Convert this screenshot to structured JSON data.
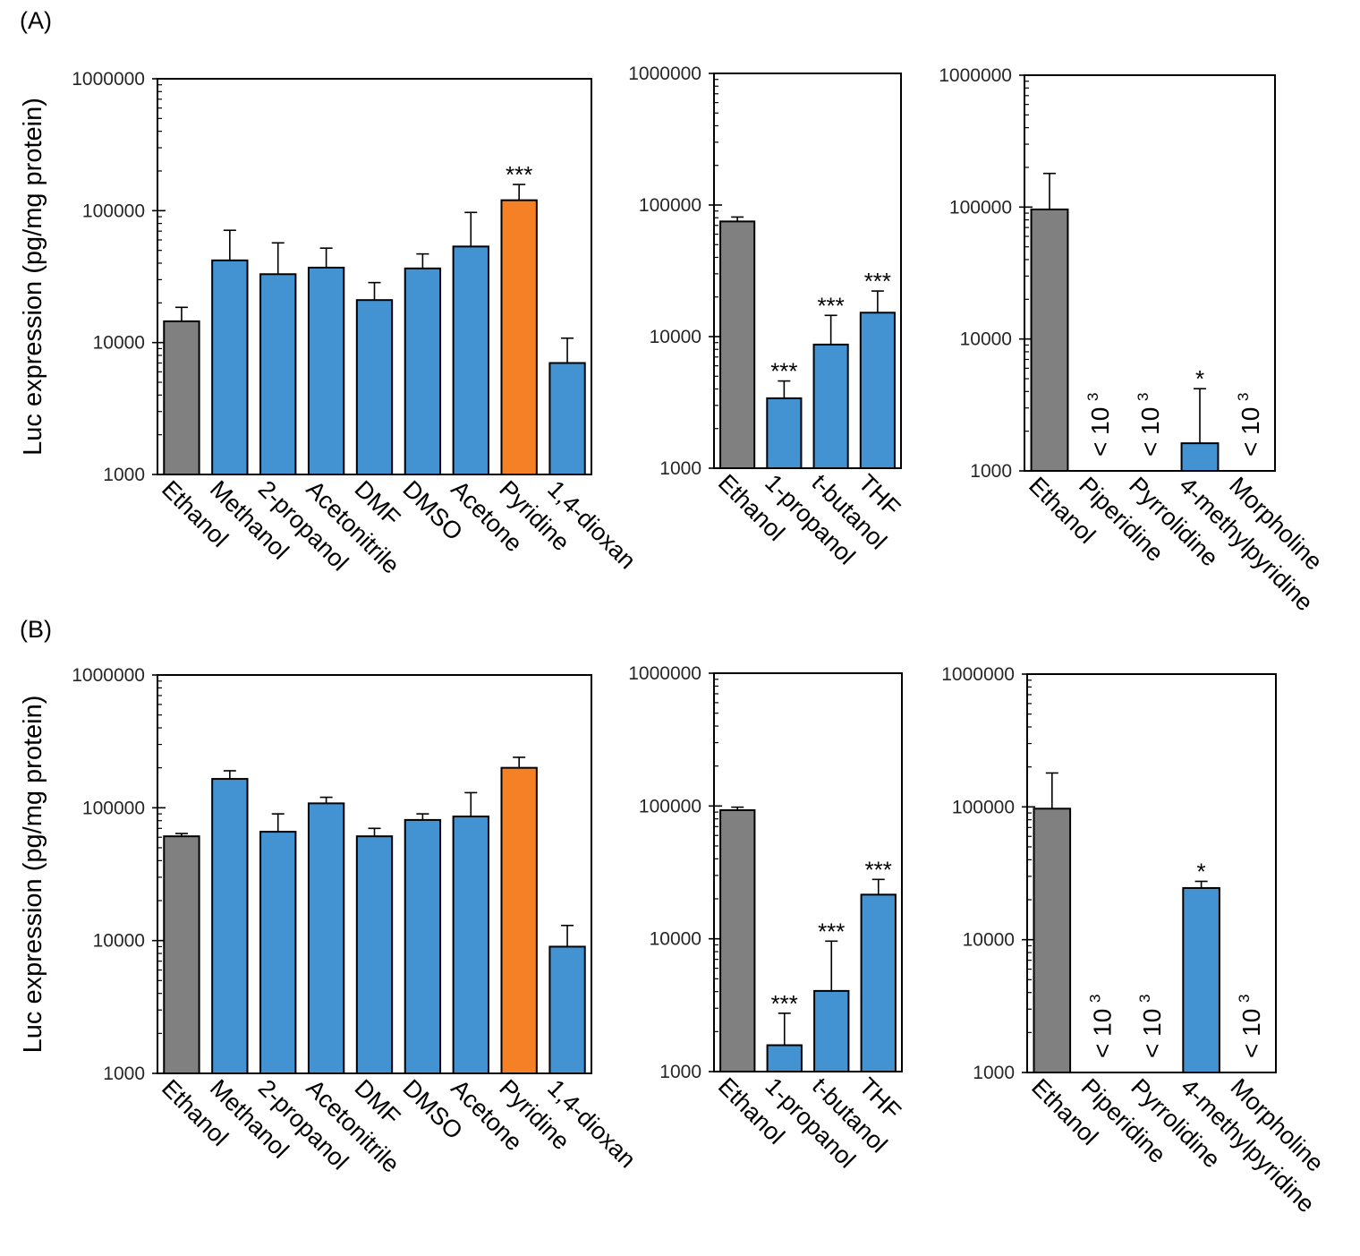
{
  "chart_data": [
    {
      "type": "bar",
      "panel": "(A)",
      "ylabel": "Luc expression (pg/mg protein)",
      "yscale": "log",
      "ylim": [
        1000,
        1000000
      ],
      "yticks": [
        "1000",
        "10000",
        "100000",
        "1000000"
      ],
      "categories": [
        "Ethanol",
        "Methanol",
        "2-propanol",
        "Acetonitrile",
        "DMF",
        "DMSO",
        "Acetone",
        "Pyridine",
        "1,4-dioxan"
      ],
      "values": [
        14500,
        42000,
        33000,
        37000,
        21000,
        36500,
        53500,
        120000,
        7000
      ],
      "errors": [
        18500,
        71000,
        57000,
        52000,
        28500,
        47000,
        97000,
        158000,
        10800
      ],
      "colors": [
        "#808080",
        "#4393d3",
        "#4393d3",
        "#4393d3",
        "#4393d3",
        "#4393d3",
        "#4393d3",
        "#f58025",
        "#4393d3"
      ],
      "annotations": [
        "",
        "",
        "",
        "",
        "",
        "",
        "",
        "***",
        ""
      ],
      "below_labels": [
        "",
        "",
        "",
        "",
        "",
        "",
        "",
        "",
        ""
      ]
    },
    {
      "type": "bar",
      "panel": "",
      "ylabel": "",
      "yscale": "log",
      "ylim": [
        1000,
        1000000
      ],
      "yticks": [
        "1000",
        "10000",
        "100000",
        "1000000"
      ],
      "categories": [
        "Ethanol",
        "1-propanol",
        "t-butanol",
        "THF"
      ],
      "values": [
        75000,
        3400,
        8700,
        15200
      ],
      "errors": [
        81000,
        4600,
        14500,
        22200
      ],
      "colors": [
        "#808080",
        "#4393d3",
        "#4393d3",
        "#4393d3"
      ],
      "annotations": [
        "",
        "***",
        "***",
        "***"
      ],
      "below_labels": [
        "",
        "",
        "",
        ""
      ]
    },
    {
      "type": "bar",
      "panel": "",
      "ylabel": "",
      "yscale": "log",
      "ylim": [
        1000,
        1000000
      ],
      "yticks": [
        "1000",
        "10000",
        "100000",
        "1000000"
      ],
      "categories": [
        "Ethanol",
        "Piperidine",
        "Pyrrolidine",
        "4-methylpyridine",
        "Morpholine"
      ],
      "values": [
        96000,
        null,
        null,
        1620,
        null
      ],
      "errors": [
        180000,
        null,
        null,
        4200,
        null
      ],
      "colors": [
        "#808080",
        "#4393d3",
        "#4393d3",
        "#4393d3",
        "#4393d3"
      ],
      "annotations": [
        "",
        "",
        "",
        "*",
        ""
      ],
      "below_labels": [
        "",
        "< 10",
        "< 10",
        "",
        "< 10"
      ],
      "below_superscript": "3"
    },
    {
      "type": "bar",
      "panel": "(B)",
      "ylabel": "Luc expression (pg/mg protein)",
      "yscale": "log",
      "ylim": [
        1000,
        1000000
      ],
      "yticks": [
        "1000",
        "10000",
        "100000",
        "1000000"
      ],
      "categories": [
        "Ethanol",
        "Methanol",
        "2-propanol",
        "Acetonitrile",
        "DMF",
        "DMSO",
        "Acetone",
        "Pyridine",
        "1,4-dioxan"
      ],
      "values": [
        61000,
        165000,
        66000,
        108000,
        61000,
        81000,
        86000,
        200000,
        9000
      ],
      "errors": [
        64000,
        190000,
        90000,
        120000,
        70000,
        90000,
        130000,
        240000,
        13000
      ],
      "colors": [
        "#808080",
        "#4393d3",
        "#4393d3",
        "#4393d3",
        "#4393d3",
        "#4393d3",
        "#4393d3",
        "#f58025",
        "#4393d3"
      ],
      "annotations": [
        "",
        "",
        "",
        "",
        "",
        "",
        "",
        "",
        ""
      ],
      "below_labels": [
        "",
        "",
        "",
        "",
        "",
        "",
        "",
        "",
        ""
      ]
    },
    {
      "type": "bar",
      "panel": "",
      "ylabel": "",
      "yscale": "log",
      "ylim": [
        1000,
        1000000
      ],
      "yticks": [
        "1000",
        "10000",
        "100000",
        "1000000"
      ],
      "categories": [
        "Ethanol",
        "1-propanol",
        "t-butanol",
        "THF"
      ],
      "values": [
        93000,
        1580,
        4050,
        21500
      ],
      "errors": [
        98000,
        2750,
        9600,
        28000
      ],
      "colors": [
        "#808080",
        "#4393d3",
        "#4393d3",
        "#4393d3"
      ],
      "annotations": [
        "",
        "***",
        "***",
        "***"
      ],
      "below_labels": [
        "",
        "",
        "",
        ""
      ]
    },
    {
      "type": "bar",
      "panel": "",
      "ylabel": "",
      "yscale": "log",
      "ylim": [
        1000,
        1000000
      ],
      "yticks": [
        "1000",
        "10000",
        "100000",
        "1000000"
      ],
      "categories": [
        "Ethanol",
        "Piperidine",
        "Pyrrolidine",
        "4-methylpyridine",
        "Morpholine"
      ],
      "values": [
        97000,
        null,
        null,
        24500,
        null
      ],
      "errors": [
        180000,
        null,
        null,
        27500,
        null
      ],
      "colors": [
        "#808080",
        "#4393d3",
        "#4393d3",
        "#4393d3",
        "#4393d3"
      ],
      "annotations": [
        "",
        "",
        "",
        "*",
        ""
      ],
      "below_labels": [
        "",
        "< 10",
        "< 10",
        "",
        "< 10"
      ],
      "below_superscript": "3"
    }
  ]
}
